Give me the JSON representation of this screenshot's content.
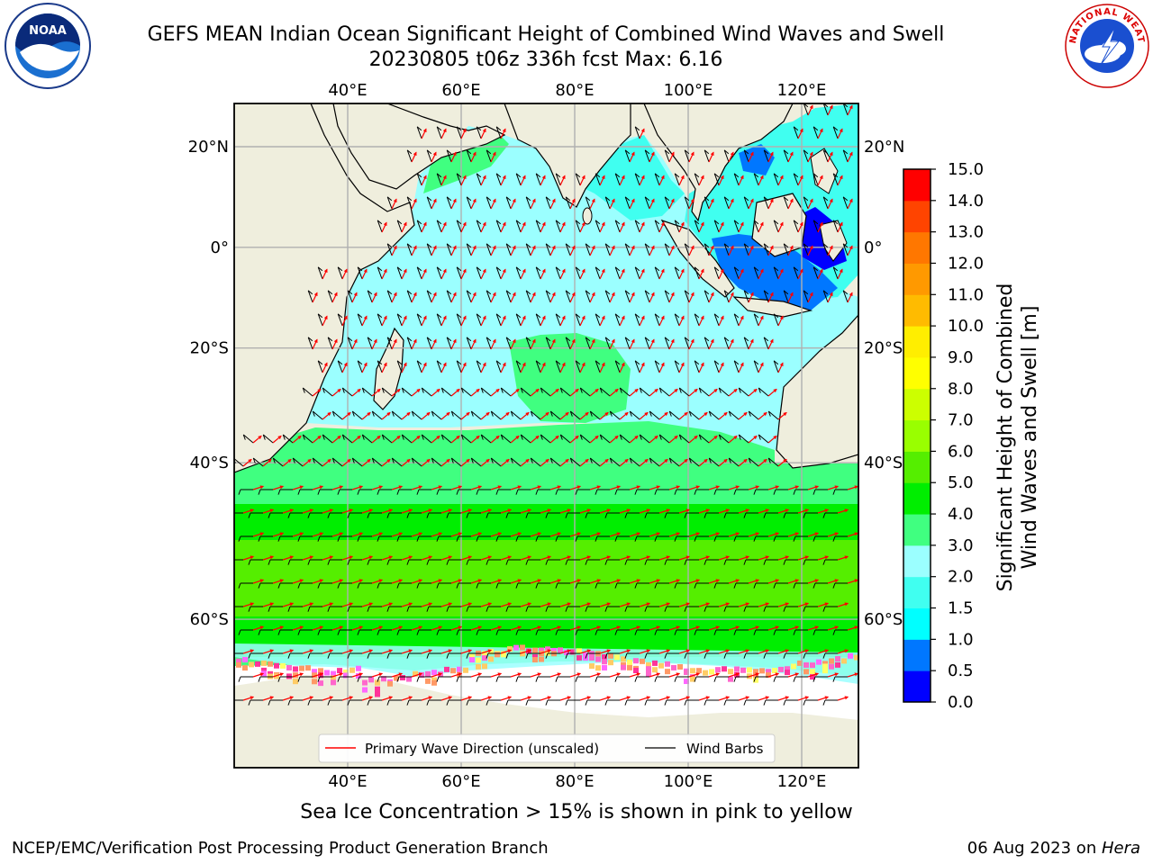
{
  "title": {
    "line1": "GEFS MEAN Indian Ocean Significant Height of Combined Wind Waves and Swell",
    "line2": "20230805 t06z 336h fcst   Max: 6.16"
  },
  "map": {
    "lon_ticks": [
      "40°E",
      "60°E",
      "80°E",
      "100°E",
      "120°E"
    ],
    "lat_ticks": [
      "20°N",
      "0°",
      "20°S",
      "40°S",
      "60°S"
    ],
    "lon_range": [
      20,
      130
    ],
    "lat_range": [
      -72,
      28
    ]
  },
  "legend": {
    "wave_label": "Primary Wave Direction (unscaled)",
    "barb_label": "Wind Barbs",
    "wave_color": "#ff0000",
    "barb_color": "#000000"
  },
  "colorbar": {
    "label_line1": "Significant Height of Combined",
    "label_line2": "Wind Waves and Swell [m]",
    "ticks": [
      "15.0",
      "14.0",
      "13.0",
      "12.0",
      "11.0",
      "10.0",
      "9.0",
      "8.0",
      "7.0",
      "6.0",
      "5.0",
      "4.0",
      "3.0",
      "2.0",
      "1.5",
      "1.0",
      "0.5",
      "0.0"
    ],
    "colors_bottom_to_top": [
      "#0000ff",
      "#0077ff",
      "#00ffff",
      "#40fff0",
      "#9bffff",
      "#40ff80",
      "#00ee00",
      "#55ee00",
      "#99ff00",
      "#ccff00",
      "#ffff00",
      "#ffee00",
      "#ffbb00",
      "#ff9900",
      "#ff7700",
      "#ff4400",
      "#ff0000"
    ]
  },
  "subtitle": "Sea Ice Concentration > 15% is shown in pink to yellow",
  "footer": {
    "left": "NCEP/EMC/Verification Post Processing Product Generation Branch",
    "right_date": "06 Aug 2023 on ",
    "right_host": "Hera"
  },
  "logos": {
    "noaa_text": "NOAA",
    "nws_text": "NATIONAL WEATHER SERVICE"
  },
  "colors": {
    "land": "#efeedd",
    "ice": "#ffffff",
    "grid": "#b0b0b0"
  }
}
